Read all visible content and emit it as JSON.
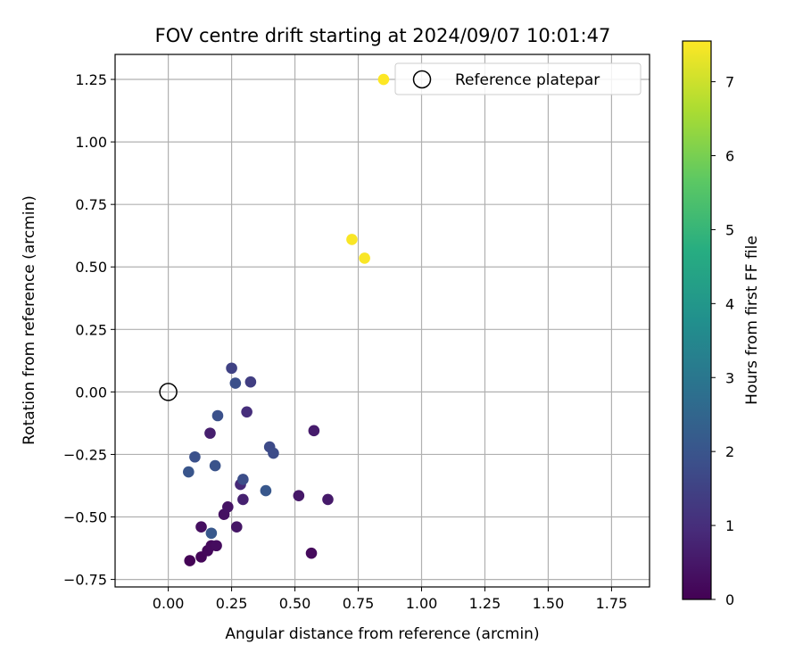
{
  "chart_data": {
    "type": "scatter",
    "title": "FOV centre drift starting at 2024/09/07 10:01:47",
    "xlabel": "Angular distance from reference (arcmin)",
    "ylabel": "Rotation from reference (arcmin)",
    "xlim": [
      -0.21,
      1.9
    ],
    "ylim": [
      -0.78,
      1.35
    ],
    "xticks": [
      0.0,
      0.25,
      0.5,
      0.75,
      1.0,
      1.25,
      1.5,
      1.75
    ],
    "xtick_labels": [
      "0.00",
      "0.25",
      "0.50",
      "0.75",
      "1.00",
      "1.25",
      "1.50",
      "1.75"
    ],
    "yticks": [
      -0.75,
      -0.5,
      -0.25,
      0.0,
      0.25,
      0.5,
      0.75,
      1.0,
      1.25
    ],
    "ytick_labels": [
      "−0.75",
      "−0.50",
      "−0.25",
      "0.00",
      "0.25",
      "0.50",
      "0.75",
      "1.00",
      "1.25"
    ],
    "grid": true,
    "legend": {
      "placement": "top-right",
      "entries": [
        {
          "label": "Reference platepar",
          "marker": "open-circle"
        }
      ]
    },
    "reference_point": {
      "x": 0.0,
      "y": 0.0
    },
    "colorbar": {
      "label": "Hours from first FF file",
      "colormap": "viridis",
      "range": [
        0,
        7.55
      ],
      "ticks": [
        0,
        1,
        2,
        3,
        4,
        5,
        6,
        7
      ],
      "tick_labels": [
        "0",
        "1",
        "2",
        "3",
        "4",
        "5",
        "6",
        "7"
      ]
    },
    "points": [
      {
        "x": 0.085,
        "y": -0.675,
        "hours": 0.05
      },
      {
        "x": 0.13,
        "y": -0.66,
        "hours": 0.1
      },
      {
        "x": 0.155,
        "y": -0.635,
        "hours": 0.15
      },
      {
        "x": 0.17,
        "y": -0.615,
        "hours": 0.2
      },
      {
        "x": 0.19,
        "y": -0.615,
        "hours": 0.25
      },
      {
        "x": 0.13,
        "y": -0.54,
        "hours": 0.3
      },
      {
        "x": 0.22,
        "y": -0.49,
        "hours": 0.35
      },
      {
        "x": 0.235,
        "y": -0.46,
        "hours": 0.4
      },
      {
        "x": 0.27,
        "y": -0.54,
        "hours": 0.45
      },
      {
        "x": 0.565,
        "y": -0.645,
        "hours": 0.2
      },
      {
        "x": 0.515,
        "y": -0.415,
        "hours": 0.5
      },
      {
        "x": 0.63,
        "y": -0.43,
        "hours": 0.55
      },
      {
        "x": 0.575,
        "y": -0.155,
        "hours": 0.6
      },
      {
        "x": 0.165,
        "y": -0.165,
        "hours": 0.65
      },
      {
        "x": 0.295,
        "y": -0.43,
        "hours": 0.7
      },
      {
        "x": 0.285,
        "y": -0.37,
        "hours": 0.9
      },
      {
        "x": 0.31,
        "y": -0.08,
        "hours": 1.0
      },
      {
        "x": 0.325,
        "y": 0.04,
        "hours": 1.4
      },
      {
        "x": 0.25,
        "y": 0.095,
        "hours": 1.5
      },
      {
        "x": 0.265,
        "y": 0.035,
        "hours": 1.85
      },
      {
        "x": 0.195,
        "y": -0.095,
        "hours": 1.9
      },
      {
        "x": 0.4,
        "y": -0.22,
        "hours": 1.7
      },
      {
        "x": 0.415,
        "y": -0.245,
        "hours": 1.75
      },
      {
        "x": 0.295,
        "y": -0.35,
        "hours": 1.8
      },
      {
        "x": 0.185,
        "y": -0.295,
        "hours": 1.95
      },
      {
        "x": 0.105,
        "y": -0.26,
        "hours": 1.9
      },
      {
        "x": 0.08,
        "y": -0.32,
        "hours": 2.0
      },
      {
        "x": 0.385,
        "y": -0.395,
        "hours": 2.05
      },
      {
        "x": 0.17,
        "y": -0.565,
        "hours": 2.1
      },
      {
        "x": 0.725,
        "y": 0.61,
        "hours": 7.5
      },
      {
        "x": 0.775,
        "y": 0.535,
        "hours": 7.5
      },
      {
        "x": 0.85,
        "y": 1.25,
        "hours": 7.55
      }
    ]
  }
}
